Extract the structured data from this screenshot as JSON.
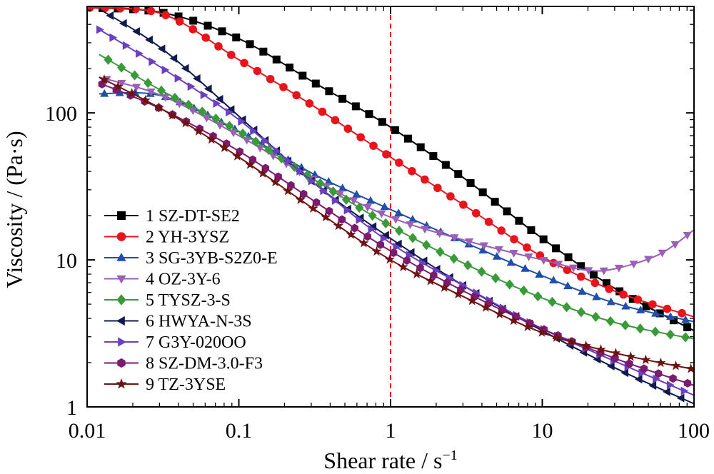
{
  "chart_data": {
    "type": "line",
    "xlabel_main": "Shear rate / s",
    "xlabel_sup": "−1",
    "ylabel": "Viscosity / (Pa·s)",
    "x_scale": "log",
    "y_scale": "log",
    "xlim": [
      0.01,
      100
    ],
    "ylim": [
      1,
      530
    ],
    "x_ticks": [
      0.01,
      0.1,
      1,
      10,
      100
    ],
    "x_tick_labels": [
      "0.01",
      "0.1",
      "1",
      "10",
      "100"
    ],
    "y_ticks": [
      1,
      10,
      100
    ],
    "y_tick_labels": [
      "1",
      "10",
      "100"
    ],
    "reference_line_x": 1,
    "reference_line_color": "#e8141c",
    "grid": false,
    "legend_position": "lower-left",
    "series": [
      {
        "name": "1 SZ-DT-SE2",
        "color": "#000000",
        "marker": "square",
        "x": [
          0.01,
          0.0316,
          0.1,
          0.316,
          1,
          3.16,
          10,
          31.6,
          100
        ],
        "y": [
          520,
          480,
          320,
          160,
          80,
          35,
          14,
          6.2,
          3.3
        ]
      },
      {
        "name": "2 YH-3YSZ",
        "color": "#e8141c",
        "marker": "circle",
        "x": [
          0.01,
          0.0316,
          0.1,
          0.316,
          1,
          3.16,
          10,
          31.6,
          100
        ],
        "y": [
          520,
          470,
          230,
          110,
          50,
          23,
          10.5,
          6.0,
          4.1
        ]
      },
      {
        "name": "3 SG-3YB-S2Z0-E",
        "color": "#1f4fa8",
        "marker": "triangle-up",
        "x": [
          0.012,
          0.0316,
          0.1,
          0.316,
          1,
          3.16,
          10,
          31.6,
          100
        ],
        "y": [
          135,
          130,
          75,
          38,
          22,
          13,
          7.8,
          5.0,
          3.8
        ]
      },
      {
        "name": "4 OZ-3Y-6",
        "color": "#9b5fb8",
        "marker": "triangle-down",
        "x": [
          0.012,
          0.0316,
          0.1,
          0.316,
          1,
          3.16,
          10,
          20,
          31.6,
          60,
          100
        ],
        "y": [
          175,
          130,
          70,
          35,
          19.5,
          13.5,
          10,
          8.5,
          8.8,
          11,
          16
        ]
      },
      {
        "name": "5 TYSZ-3-S",
        "color": "#3a9a3a",
        "marker": "diamond",
        "x": [
          0.012,
          0.0316,
          0.1,
          0.316,
          1,
          3.16,
          10,
          31.6,
          100
        ],
        "y": [
          250,
          140,
          75,
          35,
          17,
          9.3,
          5.5,
          3.7,
          2.9
        ]
      },
      {
        "name": "6 HWYA-N-3S",
        "color": "#101a4f",
        "marker": "triangle-left",
        "x": [
          0.012,
          0.0316,
          0.1,
          0.316,
          1,
          3.16,
          10,
          31.6,
          100
        ],
        "y": [
          510,
          270,
          95,
          33,
          14,
          6.5,
          3.3,
          1.8,
          1.05
        ]
      },
      {
        "name": "7 G3Y-020OO",
        "color": "#6a3fc0",
        "marker": "triangle-right",
        "x": [
          0.012,
          0.0316,
          0.1,
          0.316,
          1,
          3.16,
          10,
          31.6,
          100
        ],
        "y": [
          370,
          200,
          90,
          33,
          13,
          6.5,
          3.4,
          2.0,
          1.2
        ]
      },
      {
        "name": "8 SZ-DM-3.0-F3",
        "color": "#7b1a6e",
        "marker": "hexagon",
        "x": [
          0.012,
          0.0316,
          0.1,
          0.316,
          1,
          3.16,
          10,
          31.6,
          100
        ],
        "y": [
          160,
          105,
          55,
          25,
          11.5,
          6.0,
          3.4,
          2.1,
          1.4
        ]
      },
      {
        "name": "9 TZ-3YSE",
        "color": "#6e1212",
        "marker": "star",
        "x": [
          0.012,
          0.0316,
          0.1,
          0.316,
          1,
          3.16,
          10,
          31.6,
          100
        ],
        "y": [
          175,
          105,
          50,
          22,
          10,
          5.5,
          3.2,
          2.3,
          1.8
        ]
      }
    ]
  }
}
